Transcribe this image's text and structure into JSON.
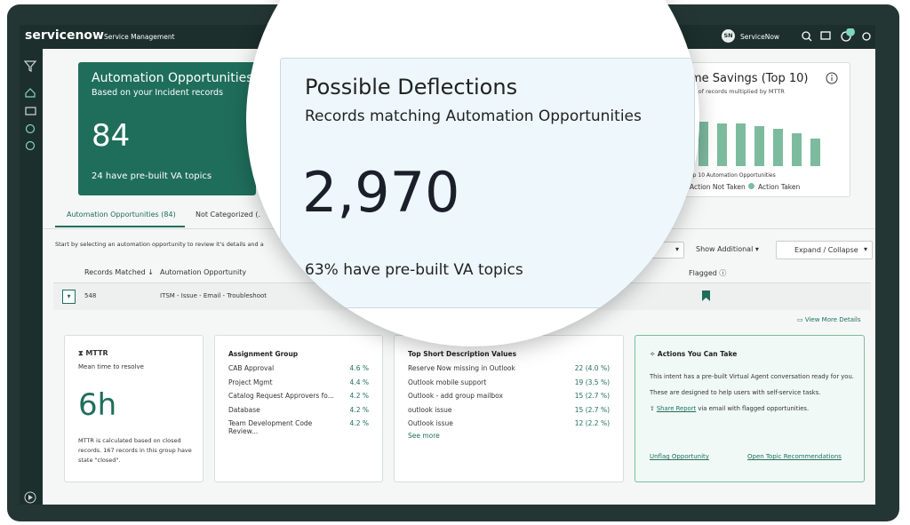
{
  "header": {
    "brand": "servicenow",
    "product": "Service Management",
    "user_initials": "SN",
    "user_name": "ServiceNow"
  },
  "summary_card": {
    "title": "Automation Opportunities",
    "subtitle": "Based on your Incident records",
    "value": 84,
    "footer": "24 have pre-built VA topics"
  },
  "zoom_card": {
    "title": "Possible Deflections",
    "subtitle": "Records matching Automation Opportunities",
    "value": "2,970",
    "footer": "63% have pre-built VA topics"
  },
  "time_savings": {
    "title": "me Savings (Top 10)",
    "subtitle": "er of records multiplied by MTTR",
    "caption": "op 10 Automation Opportunities",
    "legend": [
      "Action Not Taken",
      "Action Taken"
    ],
    "bars": [
      50,
      48,
      48,
      45,
      42,
      37,
      31
    ]
  },
  "tabs": [
    "Automation Opportunities (84)",
    "Not Categorized (."
  ],
  "instruction": "Start by selecting an automation opportunity to review it's details and a",
  "controls": {
    "dropdown": "s",
    "show_additional": "Show Additional",
    "expand": "Expand / Collapse"
  },
  "table": {
    "columns": [
      "Records Matched ↓",
      "Automation Opportunity",
      "Flagged"
    ],
    "rows": [
      [
        548,
        "ITSM - Issue - Email - Troubleshoot"
      ]
    ]
  },
  "view_more": "View More Details",
  "mttr": {
    "title": "MTTR",
    "subtitle": "Mean time to resolve",
    "value": "6h",
    "note": "MTTR is calculated based on closed records. 167 records in this group have state \"closed\"."
  },
  "assignment_group": {
    "title": "Assignment Group",
    "rows": [
      [
        "CAB Approval",
        "4.6 %"
      ],
      [
        "Project Mgmt",
        "4.4 %"
      ],
      [
        "Catalog Request Approvers fo...",
        "4.2 %"
      ],
      [
        "Database",
        "4.2 %"
      ],
      [
        "Team Development Code Review...",
        "4.2 %"
      ]
    ]
  },
  "top_short": {
    "title": "Top Short Description Values",
    "rows": [
      [
        "Reserve Now missing in Outlook",
        "22 (4.0 %)"
      ],
      [
        "Outlook mobile support",
        "19 (3.5 %)"
      ],
      [
        "Outlook - add group mailbox",
        "15 (2.7 %)"
      ],
      [
        "outlook issue",
        "15 (2.7 %)"
      ],
      [
        "Outlook issue",
        "12 (2.2 %)"
      ]
    ],
    "more": "See more"
  },
  "actions": {
    "title": "Actions You Can Take",
    "lines": [
      "This intent has a pre-built Virtual Agent conversation ready for you.",
      "These are designed to help users with self-service tasks."
    ],
    "share_link": "Share Report",
    "share_rest": " via email with flagged opportunities.",
    "links": [
      "Unflag Opportunity",
      "Open Topic Recommendations"
    ]
  }
}
